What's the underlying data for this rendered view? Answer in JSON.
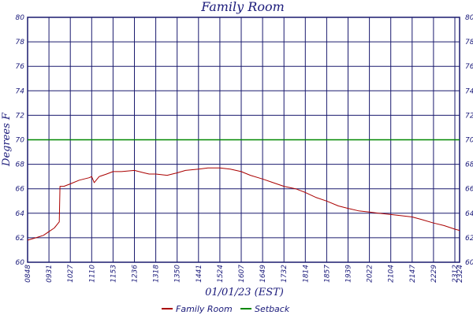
{
  "chart_data": {
    "type": "line",
    "title": "Family Room",
    "xlabel": "01/01/23 (EST)",
    "ylabel": "Degrees F",
    "ylim": [
      60,
      80
    ],
    "yticks": [
      60,
      62,
      64,
      66,
      68,
      70,
      72,
      74,
      76,
      78,
      80
    ],
    "xticks": [
      "08:48",
      "09:31",
      "10:27",
      "11:10",
      "11:53",
      "12:36",
      "13:18",
      "13:50",
      "14:41",
      "15:24",
      "16:07",
      "16:49",
      "17:32",
      "18:14",
      "18:57",
      "19:39",
      "20:22",
      "21:04",
      "21:47",
      "22:29",
      "23:12",
      "23:24"
    ],
    "grid": true,
    "legend_position": "bottom-center",
    "colors": {
      "family_room": "#aa0000",
      "setback": "#008800",
      "grid": "#1a1a6e",
      "text": "#1a1a7a"
    },
    "series": [
      {
        "name": "Family Room",
        "x": [
          "08:48",
          "09:05",
          "09:20",
          "09:31",
          "09:45",
          "09:58",
          "10:00",
          "10:10",
          "10:27",
          "10:45",
          "11:05",
          "11:10",
          "11:15",
          "11:25",
          "11:40",
          "11:53",
          "12:10",
          "12:36",
          "12:55",
          "13:05",
          "13:18",
          "13:35",
          "13:50",
          "14:10",
          "14:41",
          "15:00",
          "15:24",
          "15:45",
          "16:07",
          "16:25",
          "16:49",
          "17:10",
          "17:32",
          "17:55",
          "18:14",
          "18:35",
          "18:57",
          "19:20",
          "19:39",
          "20:00",
          "20:22",
          "20:40",
          "21:04",
          "21:25",
          "21:47",
          "22:05",
          "22:29",
          "22:50",
          "23:12",
          "23:24"
        ],
        "y": [
          61.8,
          62.0,
          62.2,
          62.5,
          62.8,
          63.3,
          66.2,
          66.2,
          66.4,
          66.7,
          66.9,
          67.0,
          66.5,
          67.0,
          67.2,
          67.4,
          67.4,
          67.5,
          67.3,
          67.2,
          67.2,
          67.1,
          67.3,
          67.5,
          67.6,
          67.7,
          67.7,
          67.6,
          67.4,
          67.1,
          66.8,
          66.5,
          66.2,
          66.0,
          65.7,
          65.3,
          65.0,
          64.6,
          64.4,
          64.2,
          64.1,
          64.0,
          63.9,
          63.8,
          63.7,
          63.5,
          63.2,
          63.0,
          62.7,
          62.6
        ]
      },
      {
        "name": "Setback",
        "x": [
          "08:48",
          "23:24"
        ],
        "y": [
          70,
          70
        ]
      }
    ]
  }
}
